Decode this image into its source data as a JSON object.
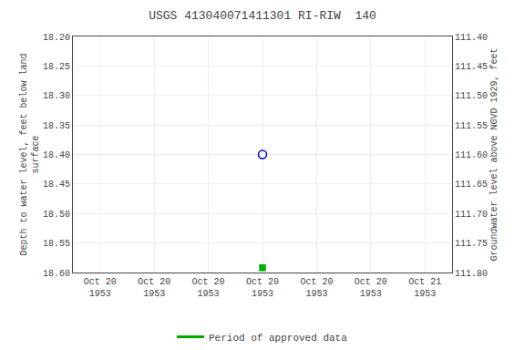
{
  "chart_data": {
    "type": "scatter",
    "title": "USGS 413040071411301 RI-RIW  140",
    "ylabel": "Depth to water level, feet below land\nsurface",
    "y2label": "Groundwater level above NGVD 1929, feet",
    "categories": [
      "Oct 20\n1953",
      "Oct 20\n1953",
      "Oct 20\n1953",
      "Oct 20\n1953",
      "Oct 20\n1953",
      "Oct 20\n1953",
      "Oct 21\n1953"
    ],
    "series": [
      {
        "color": "#0000cc",
        "marker": "circle-open",
        "values": [
          null,
          null,
          null,
          18.4,
          null,
          null,
          null
        ]
      },
      {
        "color": "#00aa00",
        "marker": "square",
        "values": [
          null,
          null,
          null,
          18.592,
          null,
          null,
          null
        ]
      },
      {
        "name": "Period of approved data",
        "color": "#00aa00",
        "type": "line",
        "values": [
          null,
          null,
          null,
          null,
          null,
          null,
          null
        ]
      }
    ],
    "ylim": [
      18.6,
      18.2
    ],
    "yticks": [
      {
        "value": 18.2,
        "label": "18.20"
      },
      18.25,
      {
        "value": 18.3,
        "label": "18.30"
      },
      18.35,
      {
        "value": 18.4,
        "label": "18.40"
      },
      18.45,
      {
        "value": 18.5,
        "label": "18.50"
      },
      18.55,
      {
        "value": 18.6,
        "label": "18.60"
      }
    ],
    "y2lim": [
      111.8,
      111.4
    ],
    "y2ticks": [
      {
        "value": 111.4,
        "label": "111.40"
      },
      111.45,
      {
        "value": 111.5,
        "label": "111.50"
      },
      111.55,
      {
        "value": 111.6,
        "label": "111.60"
      },
      111.65,
      {
        "value": 111.7,
        "label": "111.70"
      },
      111.75,
      {
        "value": 111.8,
        "label": "111.80"
      }
    ],
    "grid": true,
    "legend": "bottom"
  }
}
